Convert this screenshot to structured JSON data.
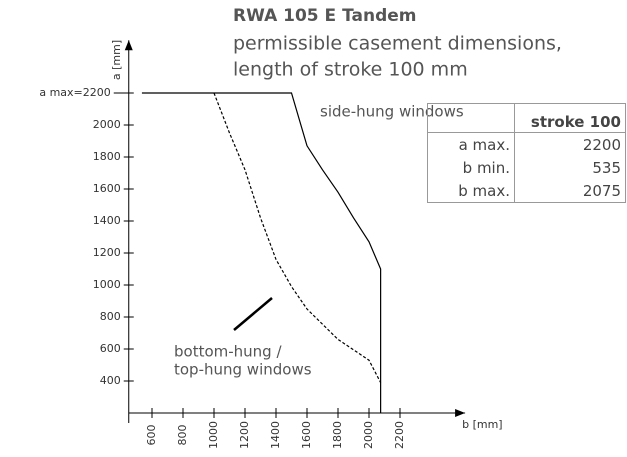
{
  "chart_data": {
    "type": "line",
    "title": "RWA 105 E Tandem",
    "subtitle": [
      "permissible casement dimensions,",
      "length of stroke 100 mm"
    ],
    "x_label": "b [mm]",
    "y_label": "a [mm]",
    "series": [
      {
        "name": "side-hung windows",
        "color": "#000000",
        "style": "solid",
        "x": [
          535,
          1500,
          1600,
          1700,
          1800,
          1900,
          2000,
          2075,
          2075
        ],
        "values": [
          2200,
          2200,
          1870,
          1720,
          1580,
          1420,
          1270,
          1100,
          200
        ]
      },
      {
        "name": "bottom-hung / top-hung windows",
        "color": "#000000",
        "style": "dashed",
        "x": [
          1000,
          1100,
          1200,
          1300,
          1400,
          1500,
          1600,
          1800,
          2000,
          2075
        ],
        "values": [
          2200,
          1950,
          1720,
          1420,
          1160,
          990,
          850,
          660,
          530,
          390
        ]
      }
    ],
    "annotation_lines": [
      [
        "side-hung windows"
      ],
      [
        "bottom-hung /",
        "top-hung windows"
      ]
    ],
    "xlim": [
      450,
      2620
    ],
    "ylim": [
      200,
      2530
    ],
    "xticks": [
      600,
      800,
      1000,
      1200,
      1400,
      1600,
      1800,
      2000,
      2200
    ],
    "yticks": [
      400,
      600,
      800,
      1000,
      1200,
      1400,
      1600,
      1800,
      2000,
      {
        "value": 2200,
        "label": "a max=2200"
      }
    ]
  },
  "table": {
    "header": "stroke 100",
    "rows": [
      [
        "a max.",
        2200
      ],
      [
        "b min.",
        535
      ],
      [
        "b max.",
        2075
      ]
    ]
  }
}
